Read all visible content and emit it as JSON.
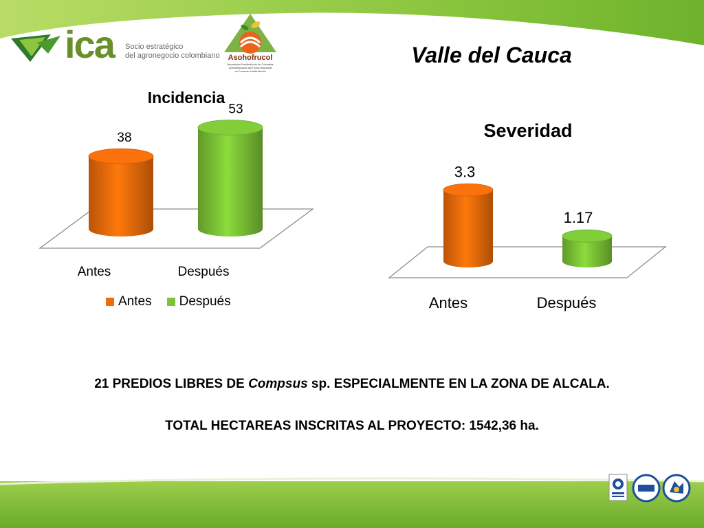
{
  "slide": {
    "title": "Valle del Cauca",
    "colors": {
      "antes": "#ef6c0a",
      "despues": "#7cc436",
      "band_green": "#86c13b"
    }
  },
  "logos": {
    "ica": {
      "word": "ica",
      "tagline_1": "Socio estratégico",
      "tagline_2": "del agronegocio colombiano"
    },
    "asohofrucol": {
      "name": "Asohofrucol",
      "sub_1": "Asociación Hortifrutícola de Colombia",
      "sub_2": "Administradora del Fondo Nacional",
      "sub_3": "de Fomento Hortifrutícola"
    },
    "certifications": [
      "icontec-cert-icon",
      "iqnet-cert-icon",
      "national-emblem-icon"
    ]
  },
  "chart_data": [
    {
      "type": "bar",
      "title": "Incidencia",
      "categories": [
        "Antes",
        "Después"
      ],
      "values": [
        38,
        53
      ],
      "value_labels": [
        "38",
        "53"
      ],
      "legend": {
        "placement": "bottom",
        "entries": [
          "Antes",
          "Después"
        ]
      },
      "ylim": [
        0,
        60
      ],
      "grid": false,
      "style": "3d-cylinder"
    },
    {
      "type": "bar",
      "title": "Severidad",
      "categories": [
        "Antes",
        "Después"
      ],
      "values": [
        3.3,
        1.17
      ],
      "value_labels": [
        "3.3",
        "1.17"
      ],
      "legend": null,
      "ylim": [
        0,
        3.5
      ],
      "grid": false,
      "style": "3d-cylinder"
    }
  ],
  "body": {
    "line1_a": "21 PREDIOS LIBRES DE ",
    "line1_b": "Compsus",
    "line1_c": " sp.  ESPECIALMENTE EN LA ZONA DE ALCALA.",
    "line2": "TOTAL HECTAREAS INSCRITAS AL PROYECTO: 1542,36 ha."
  }
}
